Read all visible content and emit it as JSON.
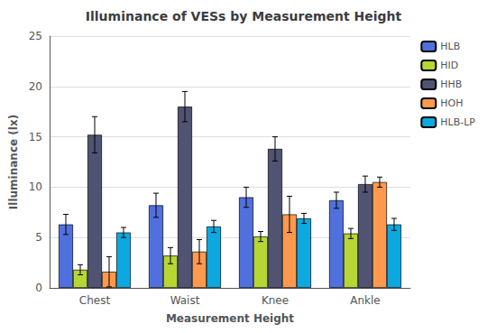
{
  "chart_data": {
    "type": "bar",
    "title": "Illuminance of VESs by Measurement Height",
    "xlabel": "Measurement Height",
    "ylabel": "Illuminance (lx)",
    "categories": [
      "Chest",
      "Waist",
      "Knee",
      "Ankle"
    ],
    "series": [
      {
        "name": "HLB",
        "values": [
          6.3,
          8.2,
          9.0,
          8.7
        ],
        "errors": [
          1.0,
          1.2,
          1.0,
          0.8
        ]
      },
      {
        "name": "HID",
        "values": [
          1.8,
          3.2,
          5.1,
          5.4
        ],
        "errors": [
          0.5,
          0.8,
          0.5,
          0.5
        ]
      },
      {
        "name": "HHB",
        "values": [
          15.2,
          18.0,
          13.8,
          10.3
        ],
        "errors": [
          1.8,
          1.5,
          1.2,
          0.8
        ]
      },
      {
        "name": "HOH",
        "values": [
          1.6,
          3.6,
          7.3,
          10.5
        ],
        "errors": [
          1.5,
          1.2,
          1.8,
          0.5
        ]
      },
      {
        "name": "HLB-LP",
        "values": [
          5.5,
          6.1,
          6.9,
          6.3
        ],
        "errors": [
          0.5,
          0.6,
          0.5,
          0.6
        ]
      }
    ],
    "ylim": [
      0,
      25
    ],
    "yticks": [
      0,
      5,
      10,
      15,
      20,
      25
    ],
    "grid": true,
    "legend": "right"
  }
}
